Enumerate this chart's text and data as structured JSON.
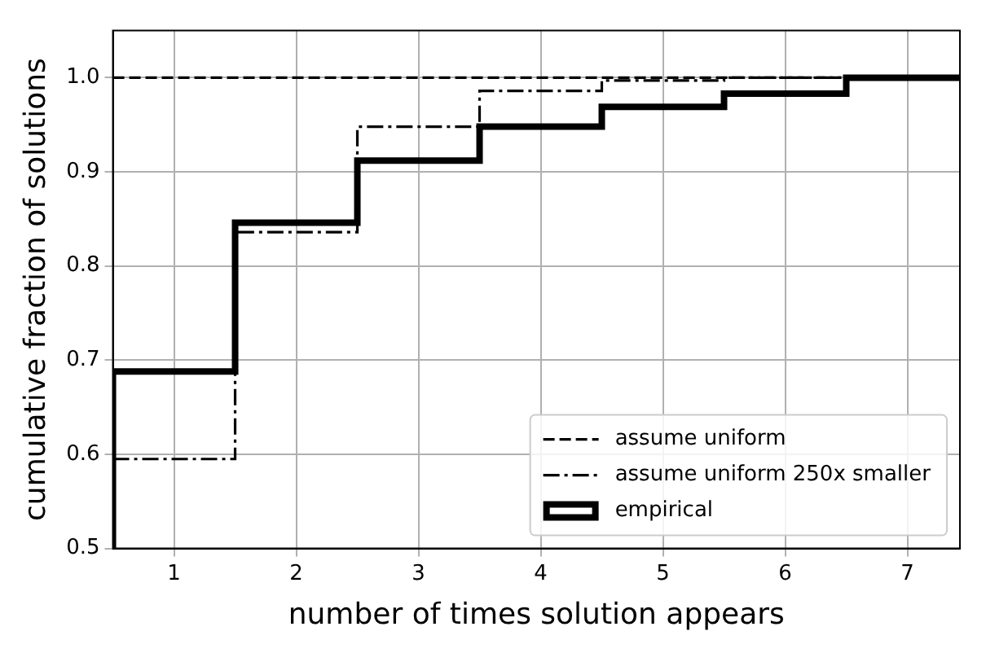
{
  "chart_data": {
    "type": "step",
    "xlabel": "number of times solution appears",
    "ylabel": "cumulative fraction of solutions",
    "xlim": [
      0.5,
      7.43
    ],
    "ylim": [
      0.5,
      1.05
    ],
    "xticks": [
      1,
      2,
      3,
      4,
      5,
      6,
      7
    ],
    "yticks": [
      0.5,
      0.6,
      0.7,
      0.8,
      0.9,
      {
        "value": 1,
        "label": "1.0"
      }
    ],
    "grid": true,
    "legend": "bottom right",
    "marker": "none",
    "series": [
      {
        "name": "assume uniform",
        "color": "#000000",
        "line_style": "dashed",
        "x": [
          0.5,
          7.43
        ],
        "values": [
          1.0,
          1.0
        ]
      },
      {
        "name": "assume uniform 250x smaller",
        "color": "#000000",
        "line_style": "dashdot",
        "x": [
          0.5,
          1.5,
          2.5,
          3.5,
          4.5,
          5.5,
          7.43
        ],
        "values": [
          0.595,
          0.836,
          0.948,
          0.986,
          0.997,
          1.0,
          1.0
        ]
      },
      {
        "name": "empirical",
        "color": "#000000",
        "line_style": "solid",
        "x": [
          0.5,
          0.5,
          1.5,
          2.5,
          3.5,
          4.5,
          5.5,
          6.5,
          7.43
        ],
        "values": [
          0.5,
          0.688,
          0.846,
          0.912,
          0.948,
          0.969,
          0.983,
          1.0,
          1.0
        ]
      }
    ]
  }
}
